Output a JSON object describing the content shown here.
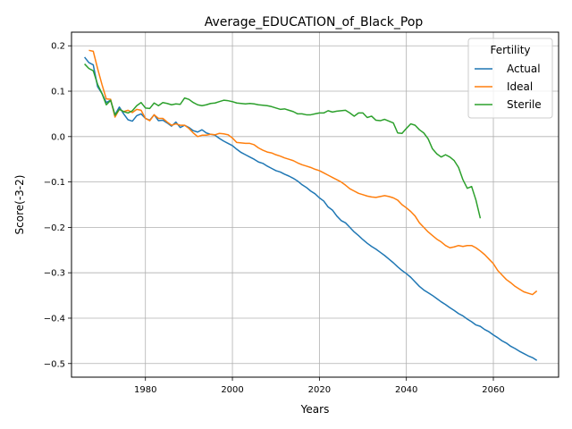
{
  "chart_data": {
    "type": "line",
    "title": "Average_EDUCATION_of_Black_Pop",
    "xlabel": "Years",
    "ylabel": "Score(-3-2)",
    "xlim": [
      1963,
      2075
    ],
    "ylim": [
      -0.53,
      0.23
    ],
    "xticks": [
      1980,
      2000,
      2020,
      2040,
      2060
    ],
    "yticks": [
      0.2,
      0.1,
      0.0,
      -0.1,
      -0.2,
      -0.3,
      -0.4,
      -0.5
    ],
    "ytick_labels": [
      "0.2",
      "0.1",
      "0.0",
      "−0.1",
      "−0.2",
      "−0.3",
      "−0.4",
      "−0.5"
    ],
    "grid": true,
    "legend": {
      "title": "Fertility",
      "placement": "top-right"
    },
    "series": [
      {
        "name": "Actual",
        "color": "#1f77b4",
        "points": [
          [
            1966,
            0.175
          ],
          [
            1967,
            0.163
          ],
          [
            1968,
            0.158
          ],
          [
            1969,
            0.11
          ],
          [
            1970,
            0.095
          ],
          [
            1971,
            0.075
          ],
          [
            1972,
            0.08
          ],
          [
            1973,
            0.048
          ],
          [
            1974,
            0.065
          ],
          [
            1975,
            0.05
          ],
          [
            1976,
            0.037
          ],
          [
            1977,
            0.034
          ],
          [
            1978,
            0.046
          ],
          [
            1979,
            0.05
          ],
          [
            1980,
            0.04
          ],
          [
            1981,
            0.036
          ],
          [
            1982,
            0.048
          ],
          [
            1983,
            0.035
          ],
          [
            1984,
            0.036
          ],
          [
            1985,
            0.03
          ],
          [
            1986,
            0.023
          ],
          [
            1987,
            0.032
          ],
          [
            1988,
            0.02
          ],
          [
            1989,
            0.025
          ],
          [
            1990,
            0.02
          ],
          [
            1991,
            0.013
          ],
          [
            1992,
            0.01
          ],
          [
            1993,
            0.015
          ],
          [
            1994,
            0.008
          ],
          [
            1995,
            0.005
          ],
          [
            1996,
            0.003
          ],
          [
            1997,
            -0.004
          ],
          [
            1998,
            -0.01
          ],
          [
            1999,
            -0.015
          ],
          [
            2000,
            -0.02
          ],
          [
            2001,
            -0.028
          ],
          [
            2002,
            -0.035
          ],
          [
            2003,
            -0.04
          ],
          [
            2004,
            -0.045
          ],
          [
            2005,
            -0.05
          ],
          [
            2006,
            -0.056
          ],
          [
            2007,
            -0.059
          ],
          [
            2008,
            -0.065
          ],
          [
            2009,
            -0.07
          ],
          [
            2010,
            -0.075
          ],
          [
            2011,
            -0.078
          ],
          [
            2012,
            -0.083
          ],
          [
            2013,
            -0.087
          ],
          [
            2014,
            -0.092
          ],
          [
            2015,
            -0.098
          ],
          [
            2016,
            -0.106
          ],
          [
            2017,
            -0.112
          ],
          [
            2018,
            -0.12
          ],
          [
            2019,
            -0.126
          ],
          [
            2020,
            -0.135
          ],
          [
            2021,
            -0.142
          ],
          [
            2022,
            -0.155
          ],
          [
            2023,
            -0.162
          ],
          [
            2024,
            -0.175
          ],
          [
            2025,
            -0.185
          ],
          [
            2026,
            -0.19
          ],
          [
            2027,
            -0.2
          ],
          [
            2028,
            -0.21
          ],
          [
            2029,
            -0.218
          ],
          [
            2030,
            -0.227
          ],
          [
            2031,
            -0.235
          ],
          [
            2032,
            -0.242
          ],
          [
            2033,
            -0.248
          ],
          [
            2034,
            -0.255
          ],
          [
            2035,
            -0.262
          ],
          [
            2036,
            -0.27
          ],
          [
            2037,
            -0.278
          ],
          [
            2038,
            -0.287
          ],
          [
            2039,
            -0.295
          ],
          [
            2040,
            -0.302
          ],
          [
            2041,
            -0.31
          ],
          [
            2042,
            -0.32
          ],
          [
            2043,
            -0.33
          ],
          [
            2044,
            -0.338
          ],
          [
            2045,
            -0.344
          ],
          [
            2046,
            -0.35
          ],
          [
            2047,
            -0.357
          ],
          [
            2048,
            -0.364
          ],
          [
            2049,
            -0.37
          ],
          [
            2050,
            -0.377
          ],
          [
            2051,
            -0.383
          ],
          [
            2052,
            -0.39
          ],
          [
            2053,
            -0.395
          ],
          [
            2054,
            -0.402
          ],
          [
            2055,
            -0.408
          ],
          [
            2056,
            -0.415
          ],
          [
            2057,
            -0.418
          ],
          [
            2058,
            -0.425
          ],
          [
            2059,
            -0.43
          ],
          [
            2060,
            -0.437
          ],
          [
            2061,
            -0.443
          ],
          [
            2062,
            -0.45
          ],
          [
            2063,
            -0.455
          ],
          [
            2064,
            -0.462
          ],
          [
            2065,
            -0.467
          ],
          [
            2066,
            -0.473
          ],
          [
            2067,
            -0.478
          ],
          [
            2068,
            -0.483
          ],
          [
            2069,
            -0.487
          ],
          [
            2070,
            -0.493
          ]
        ]
      },
      {
        "name": "Ideal",
        "color": "#ff7f0e",
        "points": [
          [
            1967,
            0.19
          ],
          [
            1968,
            0.188
          ],
          [
            1969,
            0.15
          ],
          [
            1970,
            0.115
          ],
          [
            1971,
            0.083
          ],
          [
            1972,
            0.082
          ],
          [
            1973,
            0.043
          ],
          [
            1974,
            0.06
          ],
          [
            1975,
            0.055
          ],
          [
            1976,
            0.058
          ],
          [
            1977,
            0.053
          ],
          [
            1978,
            0.06
          ],
          [
            1979,
            0.058
          ],
          [
            1980,
            0.04
          ],
          [
            1981,
            0.035
          ],
          [
            1982,
            0.048
          ],
          [
            1983,
            0.04
          ],
          [
            1984,
            0.04
          ],
          [
            1985,
            0.032
          ],
          [
            1986,
            0.025
          ],
          [
            1987,
            0.028
          ],
          [
            1988,
            0.025
          ],
          [
            1989,
            0.025
          ],
          [
            1990,
            0.018
          ],
          [
            1991,
            0.008
          ],
          [
            1992,
            0.0
          ],
          [
            1993,
            0.003
          ],
          [
            1994,
            0.003
          ],
          [
            1995,
            0.005
          ],
          [
            1996,
            0.004
          ],
          [
            1997,
            0.007
          ],
          [
            1998,
            0.006
          ],
          [
            1999,
            0.004
          ],
          [
            2000,
            -0.003
          ],
          [
            2001,
            -0.013
          ],
          [
            2002,
            -0.014
          ],
          [
            2003,
            -0.015
          ],
          [
            2004,
            -0.015
          ],
          [
            2005,
            -0.018
          ],
          [
            2006,
            -0.025
          ],
          [
            2007,
            -0.03
          ],
          [
            2008,
            -0.034
          ],
          [
            2009,
            -0.036
          ],
          [
            2010,
            -0.04
          ],
          [
            2011,
            -0.043
          ],
          [
            2012,
            -0.047
          ],
          [
            2013,
            -0.05
          ],
          [
            2014,
            -0.053
          ],
          [
            2015,
            -0.058
          ],
          [
            2016,
            -0.062
          ],
          [
            2017,
            -0.065
          ],
          [
            2018,
            -0.068
          ],
          [
            2019,
            -0.072
          ],
          [
            2020,
            -0.075
          ],
          [
            2021,
            -0.08
          ],
          [
            2022,
            -0.085
          ],
          [
            2023,
            -0.09
          ],
          [
            2024,
            -0.095
          ],
          [
            2025,
            -0.1
          ],
          [
            2026,
            -0.107
          ],
          [
            2027,
            -0.115
          ],
          [
            2028,
            -0.12
          ],
          [
            2029,
            -0.125
          ],
          [
            2030,
            -0.128
          ],
          [
            2031,
            -0.131
          ],
          [
            2032,
            -0.133
          ],
          [
            2033,
            -0.134
          ],
          [
            2034,
            -0.132
          ],
          [
            2035,
            -0.13
          ],
          [
            2036,
            -0.132
          ],
          [
            2037,
            -0.135
          ],
          [
            2038,
            -0.14
          ],
          [
            2039,
            -0.15
          ],
          [
            2040,
            -0.157
          ],
          [
            2041,
            -0.165
          ],
          [
            2042,
            -0.175
          ],
          [
            2043,
            -0.19
          ],
          [
            2044,
            -0.2
          ],
          [
            2045,
            -0.21
          ],
          [
            2046,
            -0.218
          ],
          [
            2047,
            -0.226
          ],
          [
            2048,
            -0.232
          ],
          [
            2049,
            -0.24
          ],
          [
            2050,
            -0.245
          ],
          [
            2051,
            -0.243
          ],
          [
            2052,
            -0.24
          ],
          [
            2053,
            -0.242
          ],
          [
            2054,
            -0.24
          ],
          [
            2055,
            -0.24
          ],
          [
            2056,
            -0.245
          ],
          [
            2057,
            -0.252
          ],
          [
            2058,
            -0.26
          ],
          [
            2059,
            -0.27
          ],
          [
            2060,
            -0.28
          ],
          [
            2061,
            -0.295
          ],
          [
            2062,
            -0.305
          ],
          [
            2063,
            -0.315
          ],
          [
            2064,
            -0.322
          ],
          [
            2065,
            -0.33
          ],
          [
            2066,
            -0.336
          ],
          [
            2067,
            -0.342
          ],
          [
            2068,
            -0.345
          ],
          [
            2069,
            -0.348
          ],
          [
            2070,
            -0.34
          ]
        ]
      },
      {
        "name": "Sterile",
        "color": "#2ca02c",
        "points": [
          [
            1966,
            0.16
          ],
          [
            1967,
            0.15
          ],
          [
            1968,
            0.145
          ],
          [
            1969,
            0.115
          ],
          [
            1970,
            0.095
          ],
          [
            1971,
            0.07
          ],
          [
            1972,
            0.08
          ],
          [
            1973,
            0.047
          ],
          [
            1974,
            0.06
          ],
          [
            1975,
            0.055
          ],
          [
            1976,
            0.052
          ],
          [
            1977,
            0.057
          ],
          [
            1978,
            0.068
          ],
          [
            1979,
            0.075
          ],
          [
            1980,
            0.063
          ],
          [
            1981,
            0.062
          ],
          [
            1982,
            0.074
          ],
          [
            1983,
            0.068
          ],
          [
            1984,
            0.075
          ],
          [
            1985,
            0.073
          ],
          [
            1986,
            0.07
          ],
          [
            1987,
            0.072
          ],
          [
            1988,
            0.071
          ],
          [
            1989,
            0.085
          ],
          [
            1990,
            0.082
          ],
          [
            1991,
            0.075
          ],
          [
            1992,
            0.07
          ],
          [
            1993,
            0.068
          ],
          [
            1994,
            0.07
          ],
          [
            1995,
            0.073
          ],
          [
            1996,
            0.074
          ],
          [
            1997,
            0.077
          ],
          [
            1998,
            0.08
          ],
          [
            1999,
            0.079
          ],
          [
            2000,
            0.077
          ],
          [
            2001,
            0.074
          ],
          [
            2002,
            0.073
          ],
          [
            2003,
            0.072
          ],
          [
            2004,
            0.073
          ],
          [
            2005,
            0.072
          ],
          [
            2006,
            0.07
          ],
          [
            2007,
            0.069
          ],
          [
            2008,
            0.068
          ],
          [
            2009,
            0.066
          ],
          [
            2010,
            0.063
          ],
          [
            2011,
            0.06
          ],
          [
            2012,
            0.061
          ],
          [
            2013,
            0.058
          ],
          [
            2014,
            0.055
          ],
          [
            2015,
            0.05
          ],
          [
            2016,
            0.05
          ],
          [
            2017,
            0.048
          ],
          [
            2018,
            0.048
          ],
          [
            2019,
            0.05
          ],
          [
            2020,
            0.052
          ],
          [
            2021,
            0.052
          ],
          [
            2022,
            0.057
          ],
          [
            2023,
            0.054
          ],
          [
            2024,
            0.056
          ],
          [
            2025,
            0.057
          ],
          [
            2026,
            0.058
          ],
          [
            2027,
            0.052
          ],
          [
            2028,
            0.045
          ],
          [
            2029,
            0.052
          ],
          [
            2030,
            0.052
          ],
          [
            2031,
            0.042
          ],
          [
            2032,
            0.045
          ],
          [
            2033,
            0.036
          ],
          [
            2034,
            0.035
          ],
          [
            2035,
            0.038
          ],
          [
            2036,
            0.034
          ],
          [
            2037,
            0.03
          ],
          [
            2038,
            0.008
          ],
          [
            2039,
            0.007
          ],
          [
            2040,
            0.018
          ],
          [
            2041,
            0.028
          ],
          [
            2042,
            0.025
          ],
          [
            2043,
            0.015
          ],
          [
            2044,
            0.008
          ],
          [
            2045,
            -0.005
          ],
          [
            2046,
            -0.027
          ],
          [
            2047,
            -0.038
          ],
          [
            2048,
            -0.045
          ],
          [
            2049,
            -0.04
          ],
          [
            2050,
            -0.045
          ],
          [
            2051,
            -0.053
          ],
          [
            2052,
            -0.068
          ],
          [
            2053,
            -0.095
          ],
          [
            2054,
            -0.114
          ],
          [
            2055,
            -0.11
          ],
          [
            2056,
            -0.14
          ],
          [
            2057,
            -0.18
          ]
        ]
      }
    ]
  }
}
